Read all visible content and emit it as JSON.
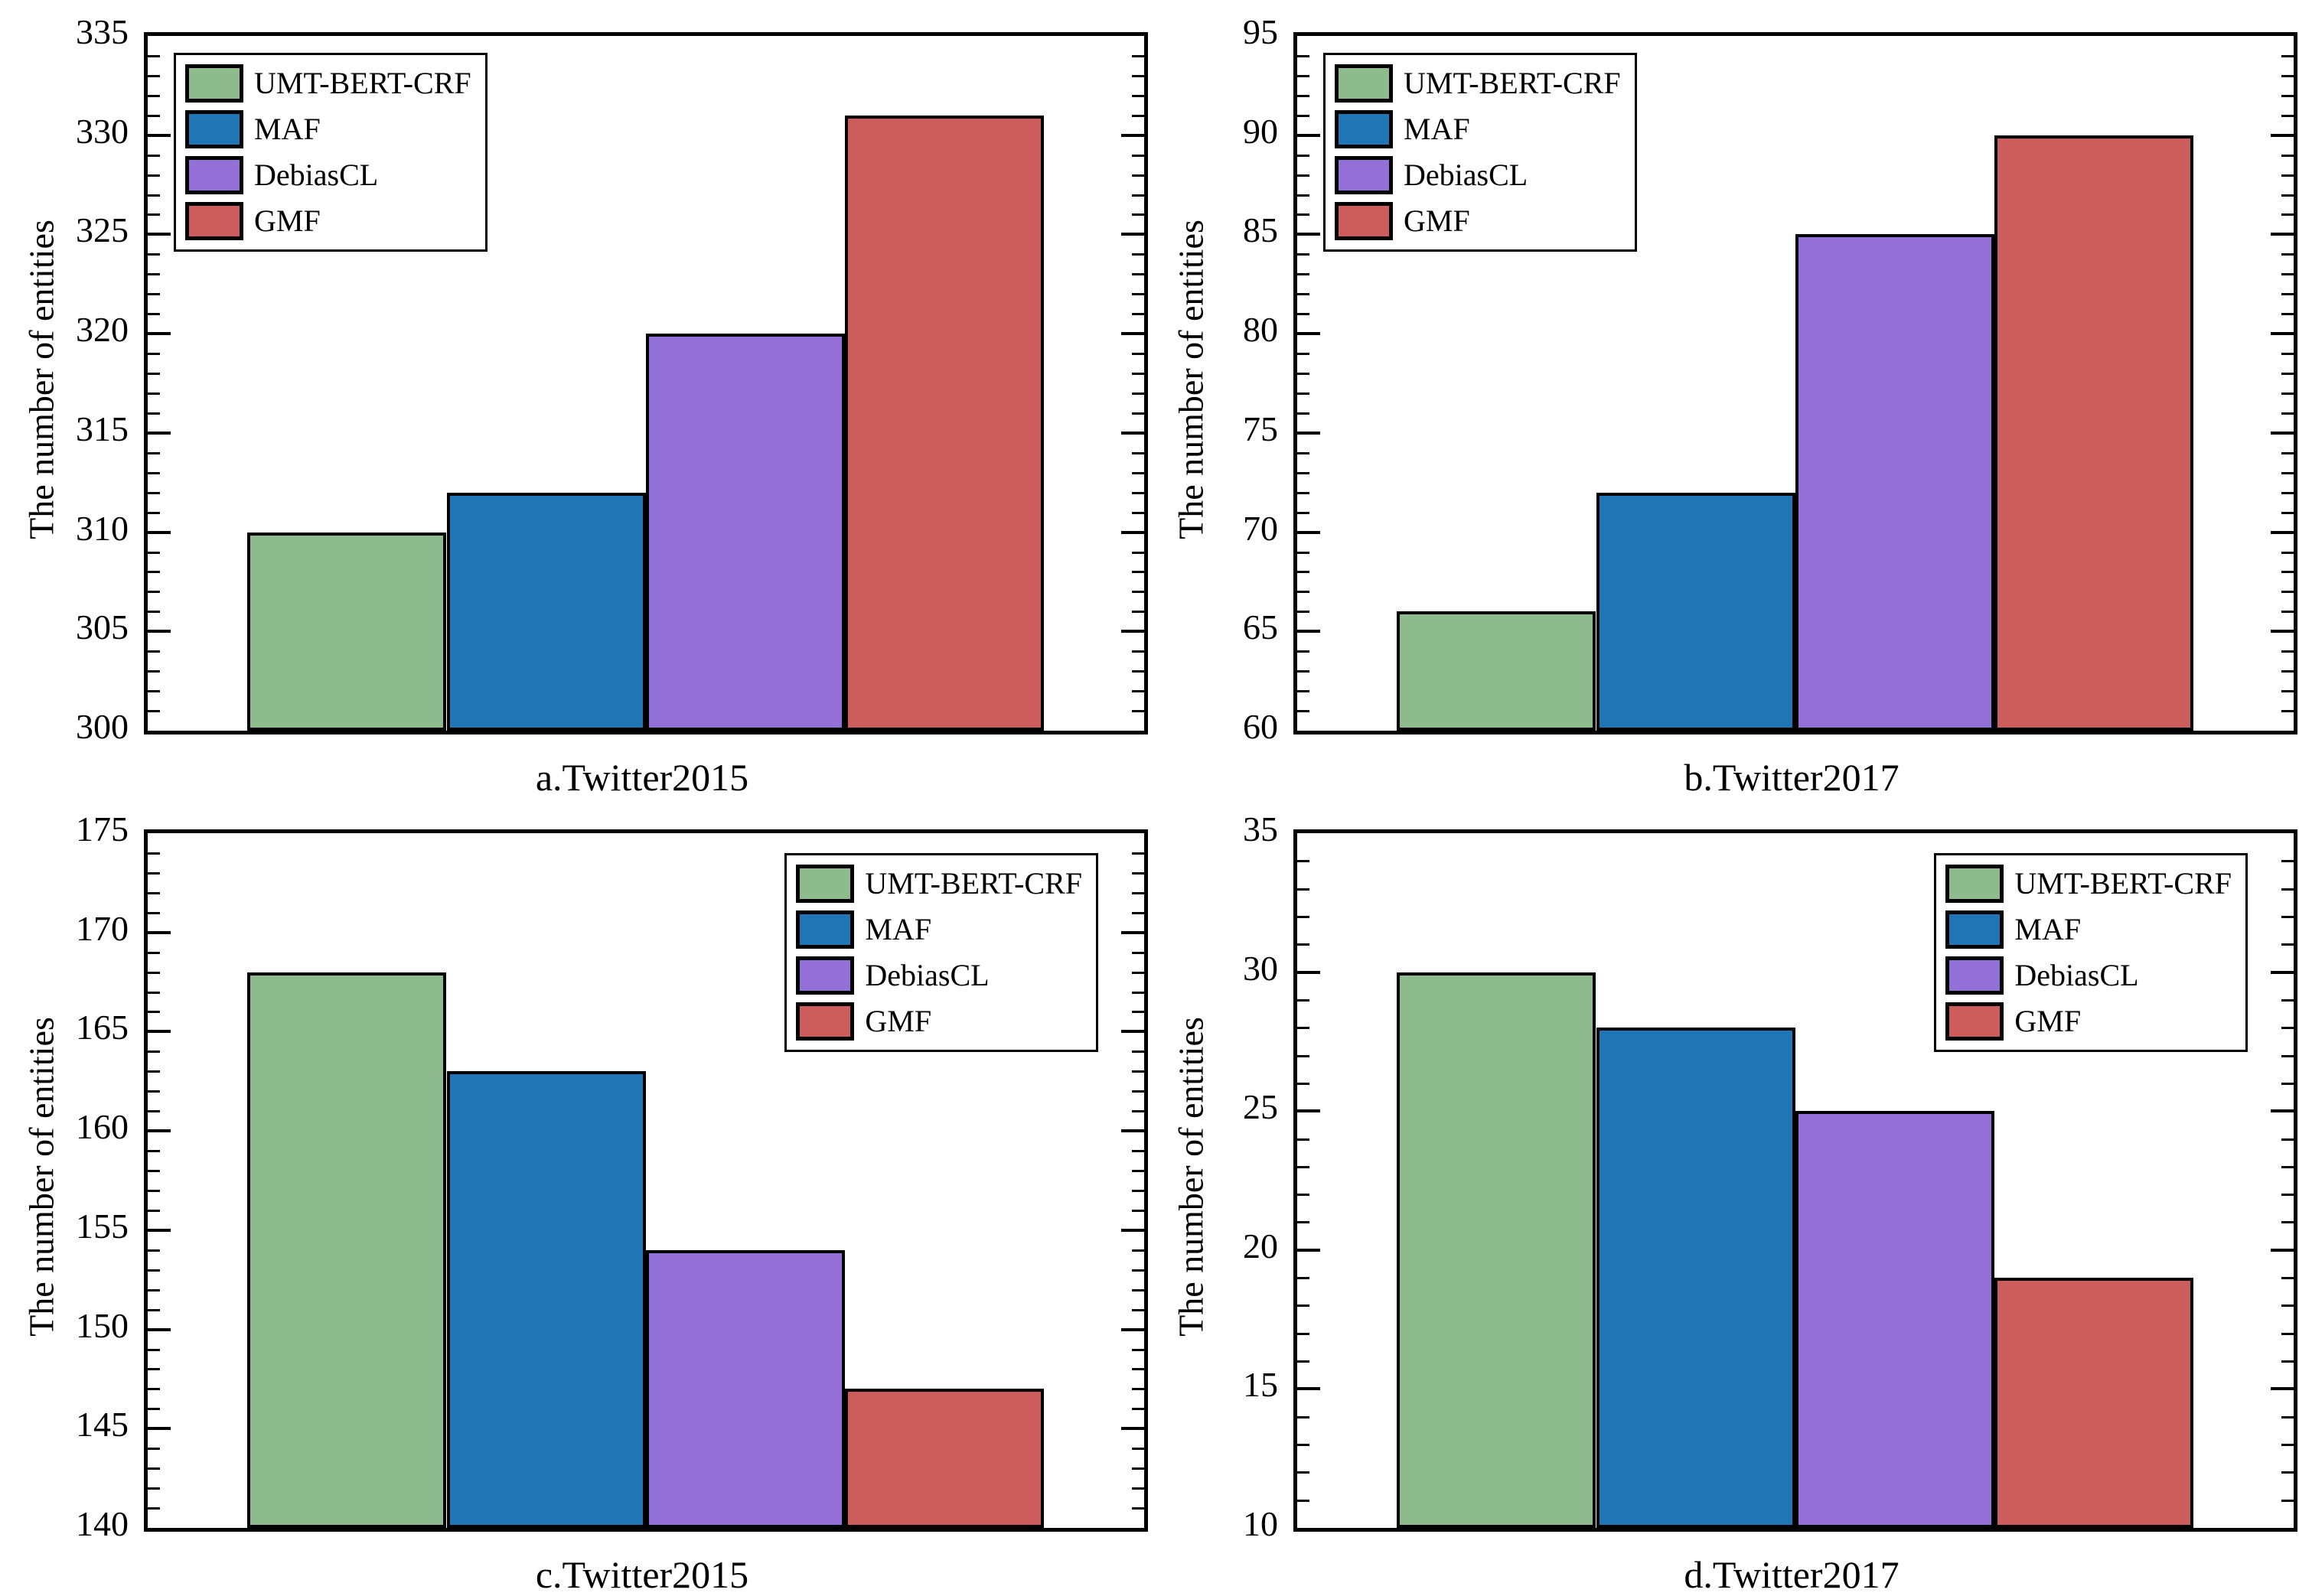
{
  "figure": {
    "background": "#ffffff",
    "ylabel": "The number of entities",
    "legend_labels": [
      "UMT-BERT-CRF",
      "MAF",
      "DebiasCL",
      "GMF"
    ],
    "series_colors": {
      "UMT-BERT-CRF": "#8dbb8d",
      "MAF": "#2076b4",
      "DebiasCL": "#9370d8",
      "GMF": "#cd5c5c"
    },
    "axis_color": "#000000"
  },
  "chart_data": [
    {
      "type": "bar",
      "title": "a.Twitter2015",
      "ylabel": "The number of entities",
      "categories": [
        "UMT-BERT-CRF",
        "MAF",
        "DebiasCL",
        "GMF"
      ],
      "values": [
        310,
        312,
        320,
        331
      ],
      "ylim": [
        300,
        335
      ],
      "yticks": [
        300,
        305,
        310,
        315,
        320,
        325,
        330,
        335
      ],
      "minor_step": 1,
      "grid": false,
      "legend_position": "top-left"
    },
    {
      "type": "bar",
      "title": "b.Twitter2017",
      "ylabel": "The number of entities",
      "categories": [
        "UMT-BERT-CRF",
        "MAF",
        "DebiasCL",
        "GMF"
      ],
      "values": [
        66,
        72,
        85,
        90
      ],
      "ylim": [
        60,
        95
      ],
      "yticks": [
        60,
        65,
        70,
        75,
        80,
        85,
        90,
        95
      ],
      "minor_step": 1,
      "grid": false,
      "legend_position": "top-left"
    },
    {
      "type": "bar",
      "title": "c.Twitter2015",
      "ylabel": "The number of entities",
      "categories": [
        "UMT-BERT-CRF",
        "MAF",
        "DebiasCL",
        "GMF"
      ],
      "values": [
        168,
        163,
        154,
        147
      ],
      "ylim": [
        140,
        175
      ],
      "yticks": [
        140,
        145,
        150,
        155,
        160,
        165,
        170,
        175
      ],
      "minor_step": 1,
      "grid": false,
      "legend_position": "top-right"
    },
    {
      "type": "bar",
      "title": "d.Twitter2017",
      "ylabel": "The number of entities",
      "categories": [
        "UMT-BERT-CRF",
        "MAF",
        "DebiasCL",
        "GMF"
      ],
      "values": [
        30,
        28,
        25,
        19
      ],
      "ylim": [
        10,
        35
      ],
      "yticks": [
        10,
        15,
        20,
        25,
        30,
        35
      ],
      "minor_step": 1,
      "grid": false,
      "legend_position": "top-right"
    }
  ]
}
